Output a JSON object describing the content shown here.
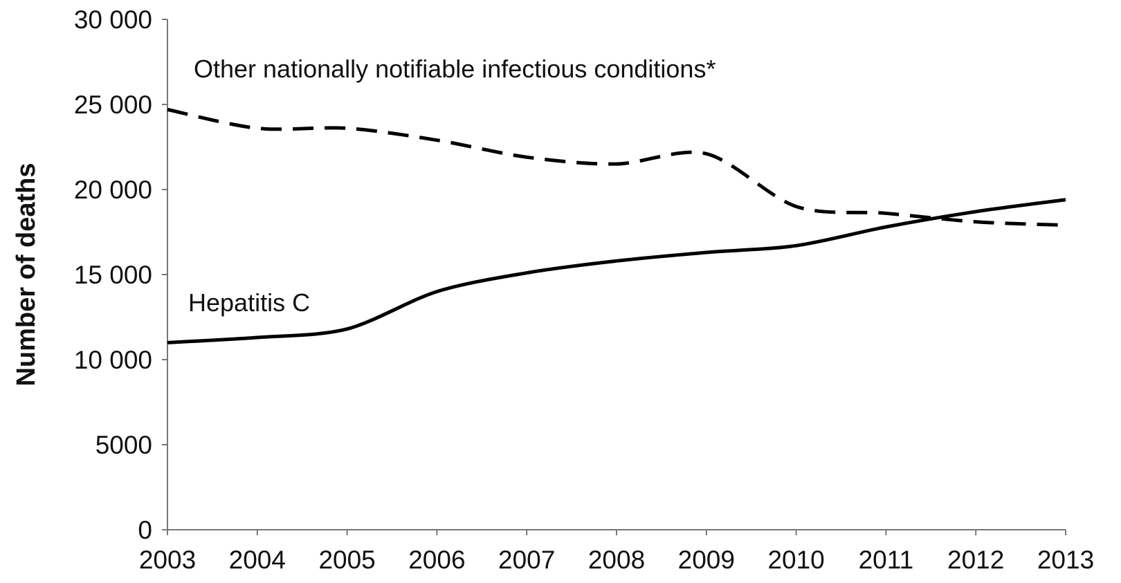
{
  "chart_data": {
    "type": "line",
    "title": "",
    "xlabel": "",
    "ylabel": "Number of deaths",
    "x": [
      2003,
      2004,
      2005,
      2006,
      2007,
      2008,
      2009,
      2010,
      2011,
      2012,
      2013
    ],
    "xlim": [
      2003,
      2013
    ],
    "ylim": [
      0,
      30000
    ],
    "y_ticks": [
      0,
      5000,
      10000,
      15000,
      20000,
      25000,
      30000
    ],
    "y_tick_labels": [
      "0",
      "5000",
      "10 000",
      "15 000",
      "20 000",
      "25 000",
      "30 000"
    ],
    "x_tick_labels": [
      "2003",
      "2004",
      "2005",
      "2006",
      "2007",
      "2008",
      "2009",
      "2010",
      "2011",
      "2012",
      "2013"
    ],
    "grid": false,
    "legend": "none",
    "series": [
      {
        "name": "Other nationally notifiable infectious conditions*",
        "style": "dashed",
        "color": "#000000",
        "values": [
          24700,
          23600,
          23600,
          22900,
          21900,
          21500,
          22100,
          19000,
          18600,
          18100,
          17900
        ]
      },
      {
        "name": "Hepatitis C",
        "style": "solid",
        "color": "#000000",
        "values": [
          11000,
          11300,
          11800,
          14000,
          15100,
          15800,
          16300,
          16700,
          17800,
          18700,
          19400
        ]
      }
    ]
  }
}
